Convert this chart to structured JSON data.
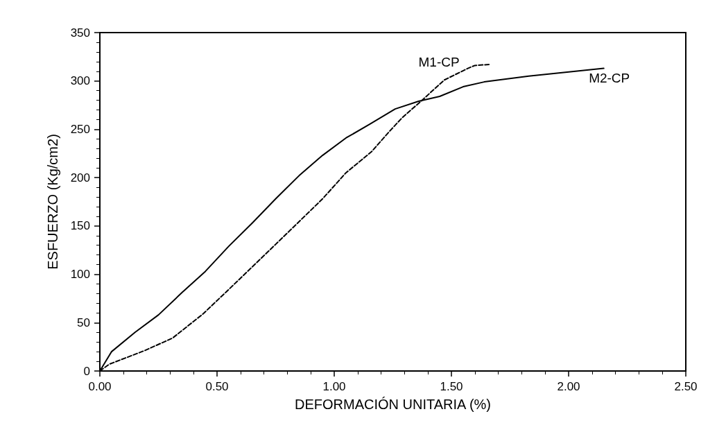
{
  "chart_data": {
    "type": "line",
    "xlabel": "DEFORMACIÓN UNITARIA (%)",
    "ylabel": "ESFUERZO (Kg/cm2)",
    "xlim": [
      0,
      2.5
    ],
    "xticks": [
      {
        "value": 0,
        "label": "0.00"
      },
      {
        "value": 0.5,
        "label": "0.50"
      },
      {
        "value": 1,
        "label": "1.00"
      },
      {
        "value": 1.5,
        "label": "1.50"
      },
      {
        "value": 2,
        "label": "2.00"
      },
      {
        "value": 2.5,
        "label": "2.50"
      }
    ],
    "ylim": [
      0,
      350
    ],
    "yticks": [
      0,
      50,
      100,
      150,
      200,
      250,
      300,
      350
    ],
    "grid": false,
    "legend": false,
    "marker": "none",
    "series": [
      {
        "name": "M1-CP",
        "color": "#000000",
        "line_style": "dashed",
        "x": [
          0,
          0.04,
          0.19,
          0.31,
          0.44,
          0.54,
          0.75,
          0.95,
          1.05,
          1.16,
          1.24,
          1.29,
          1.37,
          1.47,
          1.57,
          1.6,
          1.66
        ],
        "values": [
          0,
          7,
          21,
          34,
          59,
          82,
          131,
          178,
          205,
          227,
          249,
          262,
          279,
          301,
          313,
          316,
          317
        ]
      },
      {
        "name": "M2-CP",
        "color": "#000000",
        "line_style": "solid",
        "x": [
          0,
          0.05,
          0.15,
          0.25,
          0.35,
          0.45,
          0.55,
          0.65,
          0.75,
          0.85,
          0.95,
          1.05,
          1.15,
          1.26,
          1.36,
          1.45,
          1.55,
          1.64,
          1.83,
          2.15
        ],
        "values": [
          0,
          20,
          40,
          58,
          81,
          103,
          129,
          153,
          178,
          202,
          223,
          241,
          255,
          271,
          279,
          284,
          294,
          299,
          305,
          313
        ]
      }
    ]
  }
}
